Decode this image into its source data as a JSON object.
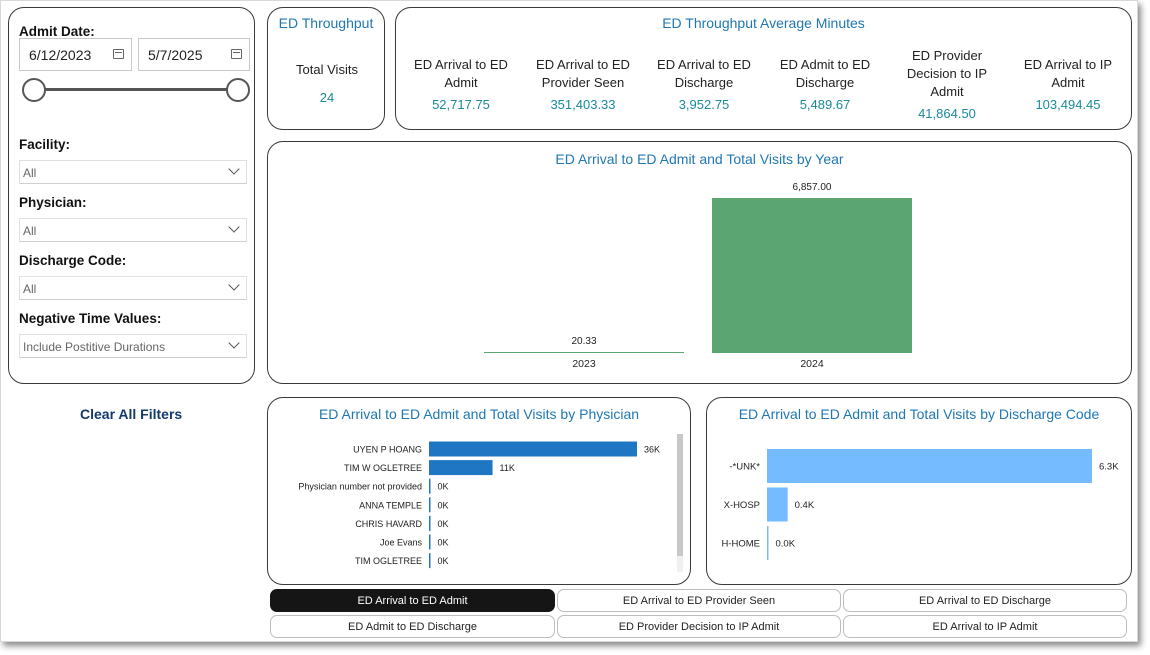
{
  "filters": {
    "admit_date_label": "Admit Date:",
    "start_date": "6/12/2023",
    "end_date": "5/7/2025",
    "facility_label": "Facility:",
    "facility_value": "All",
    "physician_label": "Physician:",
    "physician_value": "All",
    "discharge_label": "Discharge Code:",
    "discharge_value": "All",
    "negative_label": "Negative Time Values:",
    "negative_value": "Include Postitive Durations",
    "clear_label": "Clear All Filters"
  },
  "kpi_total": {
    "title": "ED Throughput",
    "label": "Total Visits",
    "value": "24"
  },
  "kpi_avg": {
    "title": "ED Throughput Average Minutes",
    "items": [
      {
        "label": "ED Arrival to ED Admit",
        "value": "52,717.75"
      },
      {
        "label": "ED Arrival to ED Provider Seen",
        "value": "351,403.33"
      },
      {
        "label": "ED Arrival to ED Discharge",
        "value": "3,952.75"
      },
      {
        "label": "ED Admit to ED Discharge",
        "value": "5,489.67"
      },
      {
        "label": "ED Provider Decision to IP Admit",
        "value": "41,864.50"
      },
      {
        "label": "ED Arrival to IP Admit",
        "value": "103,494.45"
      }
    ]
  },
  "chart_data": [
    {
      "type": "bar",
      "title": "ED Arrival to ED Admit and Total Visits by Year",
      "categories": [
        "2023",
        "2024"
      ],
      "values": [
        20.33,
        6857.0
      ],
      "value_labels": [
        "20.33",
        "6,857.00"
      ],
      "bar_color": "#5ba572"
    },
    {
      "type": "bar",
      "orientation": "horizontal",
      "title": "ED Arrival to ED Admit and Total Visits by Physician",
      "categories": [
        "UYEN P HOANG",
        "TIM W OGLETREE",
        "Physician number not provided",
        "ANNA TEMPLE",
        "CHRIS HAVARD",
        "Joe Evans",
        "TIM OGLETREE"
      ],
      "values": [
        36000,
        11000,
        0,
        0,
        0,
        0,
        0
      ],
      "value_labels": [
        "36K",
        "11K",
        "0K",
        "0K",
        "0K",
        "0K",
        "0K"
      ],
      "bar_color": "#1f77c4"
    },
    {
      "type": "bar",
      "orientation": "horizontal",
      "title": "ED Arrival to ED Admit and Total Visits by Discharge Code",
      "categories": [
        "-*UNK*",
        "X-HOSP",
        "H-HOME"
      ],
      "values": [
        6300,
        400,
        0
      ],
      "value_labels": [
        "6.3K",
        "0.4K",
        "0.0K"
      ],
      "bar_color": "#74bbff"
    }
  ],
  "metric_buttons": [
    {
      "label": "ED Arrival to ED Admit",
      "active": true
    },
    {
      "label": "ED Arrival to ED Provider Seen",
      "active": false
    },
    {
      "label": "ED Arrival to ED Discharge",
      "active": false
    },
    {
      "label": "ED Admit to ED Discharge",
      "active": false
    },
    {
      "label": "ED Provider Decision to IP Admit",
      "active": false
    },
    {
      "label": "ED Arrival to IP Admit",
      "active": false
    }
  ]
}
